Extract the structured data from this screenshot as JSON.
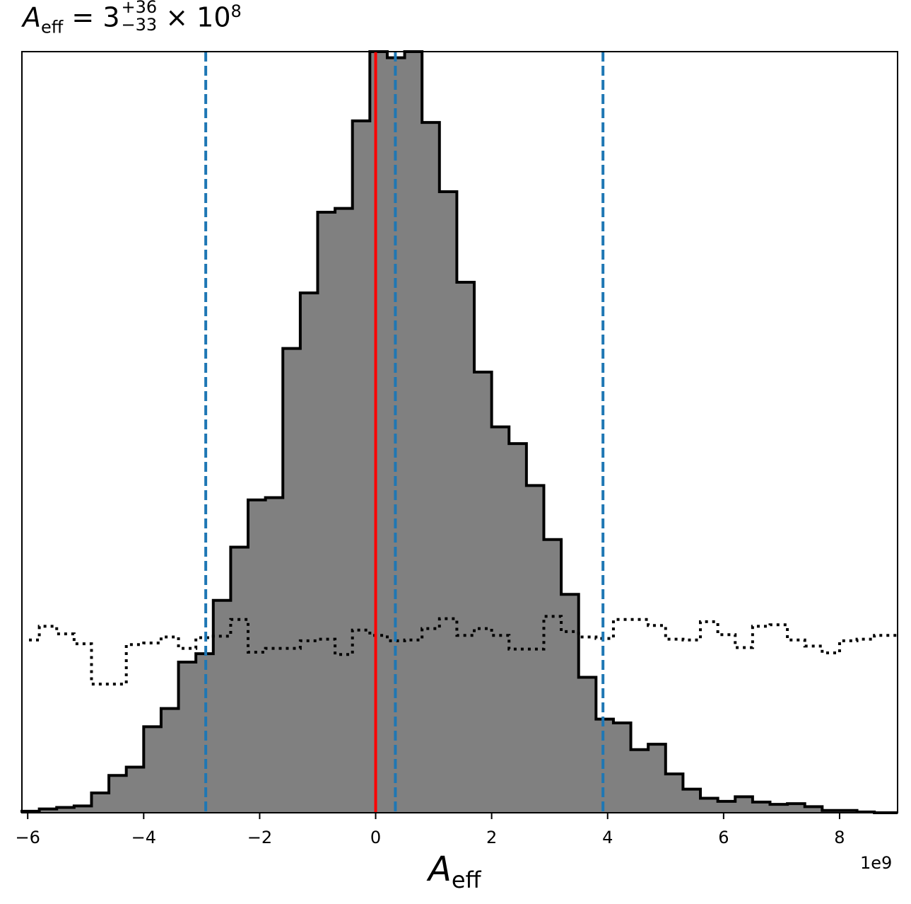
{
  "title": {
    "symbol": "A",
    "symbol_sub": "eff",
    "equals": "= 3",
    "plus": "+36",
    "minus": "−33",
    "times": "× 10",
    "power": "8"
  },
  "xlabel": {
    "symbol": "A",
    "sub": "eff"
  },
  "offset_label": "1e9",
  "chart_data": {
    "type": "histogram",
    "x_scale": 1000000000,
    "xlim": [
      -6.1,
      9.0
    ],
    "ylim": [
      0,
      1
    ],
    "x_ticks": [
      -6,
      -4,
      -2,
      0,
      2,
      4,
      6,
      8
    ],
    "x_tick_labels": [
      "−6",
      "−4",
      "−2",
      "0",
      "2",
      "4",
      "6",
      "8"
    ],
    "grid": false,
    "bin_edges": [
      -6.1,
      -5.8,
      -5.5,
      -5.2,
      -4.9,
      -4.6,
      -4.3,
      -4.0,
      -3.7,
      -3.4,
      -3.1,
      -2.8,
      -2.5,
      -2.2,
      -1.9,
      -1.6,
      -1.3,
      -1.0,
      -0.7,
      -0.4,
      -0.1,
      0.2,
      0.5,
      0.8,
      1.1,
      1.4,
      1.7,
      2.0,
      2.3,
      2.6,
      2.9,
      3.2,
      3.5,
      3.8,
      4.1,
      4.4,
      4.7,
      5.0,
      5.3,
      5.6,
      5.9,
      6.2,
      6.5,
      6.8,
      7.1,
      7.4,
      7.7,
      8.0,
      8.3,
      8.6,
      9.0
    ],
    "posterior_counts": [
      0.002,
      0.005,
      0.007,
      0.009,
      0.026,
      0.049,
      0.06,
      0.113,
      0.137,
      0.198,
      0.209,
      0.279,
      0.349,
      0.411,
      0.414,
      0.61,
      0.683,
      0.789,
      0.794,
      0.909,
      1.0,
      0.992,
      1.0,
      0.907,
      0.816,
      0.697,
      0.579,
      0.507,
      0.485,
      0.43,
      0.359,
      0.287,
      0.178,
      0.123,
      0.118,
      0.083,
      0.09,
      0.051,
      0.031,
      0.019,
      0.015,
      0.021,
      0.014,
      0.011,
      0.012,
      0.008,
      0.003,
      0.003,
      0.001,
      0.0
    ],
    "prior_counts": [
      0.227,
      0.245,
      0.235,
      0.222,
      0.169,
      0.169,
      0.221,
      0.223,
      0.231,
      0.216,
      0.23,
      0.232,
      0.254,
      0.211,
      0.216,
      0.216,
      0.226,
      0.228,
      0.208,
      0.24,
      0.233,
      0.226,
      0.227,
      0.242,
      0.255,
      0.233,
      0.242,
      0.233,
      0.215,
      0.215,
      0.258,
      0.238,
      0.231,
      0.229,
      0.254,
      0.254,
      0.246,
      0.228,
      0.227,
      0.251,
      0.234,
      0.217,
      0.245,
      0.247,
      0.227,
      0.219,
      0.21,
      0.226,
      0.228,
      0.233
    ],
    "quantile_lines": [
      -2.93,
      0.34,
      3.92
    ],
    "truth_line": 0.0,
    "colors": {
      "posterior_fill": "#808080",
      "posterior_edge": "#000000",
      "prior": "#000000",
      "quantile": "#1f77b4",
      "truth": "#ff0000"
    }
  }
}
